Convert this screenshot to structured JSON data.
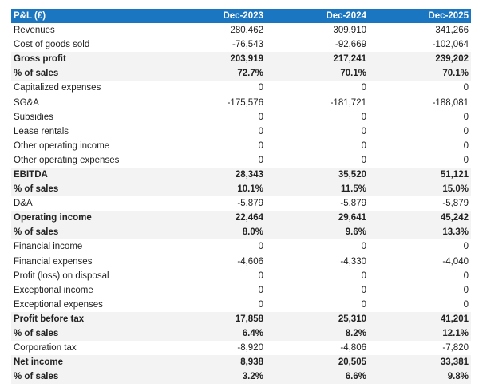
{
  "table": {
    "header": [
      "P&L (£)",
      "Dec-2023",
      "Dec-2024",
      "Dec-2025"
    ],
    "header_color": "#1a76c1",
    "rows": [
      {
        "label": "Revenues",
        "values": [
          "280,462",
          "309,910",
          "341,266"
        ],
        "bold": false
      },
      {
        "label": "Cost of goods sold",
        "values": [
          "-76,543",
          "-92,669",
          "-102,064"
        ],
        "bold": false
      },
      {
        "label": "Gross profit",
        "values": [
          "203,919",
          "217,241",
          "239,202"
        ],
        "bold": true
      },
      {
        "label": "% of sales",
        "values": [
          "72.7%",
          "70.1%",
          "70.1%"
        ],
        "bold": true
      },
      {
        "label": "Capitalized expenses",
        "values": [
          "0",
          "0",
          "0"
        ],
        "bold": false
      },
      {
        "label": "SG&A",
        "values": [
          "-175,576",
          "-181,721",
          "-188,081"
        ],
        "bold": false
      },
      {
        "label": "Subsidies",
        "values": [
          "0",
          "0",
          "0"
        ],
        "bold": false
      },
      {
        "label": "Lease rentals",
        "values": [
          "0",
          "0",
          "0"
        ],
        "bold": false
      },
      {
        "label": "Other operating income",
        "values": [
          "0",
          "0",
          "0"
        ],
        "bold": false
      },
      {
        "label": "Other operating expenses",
        "values": [
          "0",
          "0",
          "0"
        ],
        "bold": false
      },
      {
        "label": "EBITDA",
        "values": [
          "28,343",
          "35,520",
          "51,121"
        ],
        "bold": true
      },
      {
        "label": "% of sales",
        "values": [
          "10.1%",
          "11.5%",
          "15.0%"
        ],
        "bold": true
      },
      {
        "label": "D&A",
        "values": [
          "-5,879",
          "-5,879",
          "-5,879"
        ],
        "bold": false
      },
      {
        "label": "Operating income",
        "values": [
          "22,464",
          "29,641",
          "45,242"
        ],
        "bold": true
      },
      {
        "label": "% of sales",
        "values": [
          "8.0%",
          "9.6%",
          "13.3%"
        ],
        "bold": true
      },
      {
        "label": "Financial income",
        "values": [
          "0",
          "0",
          "0"
        ],
        "bold": false
      },
      {
        "label": "Financial expenses",
        "values": [
          "-4,606",
          "-4,330",
          "-4,040"
        ],
        "bold": false
      },
      {
        "label": "Profit (loss) on disposal",
        "values": [
          "0",
          "0",
          "0"
        ],
        "bold": false
      },
      {
        "label": "Exceptional income",
        "values": [
          "0",
          "0",
          "0"
        ],
        "bold": false
      },
      {
        "label": "Exceptional expenses",
        "values": [
          "0",
          "0",
          "0"
        ],
        "bold": false
      },
      {
        "label": "Profit before tax",
        "values": [
          "17,858",
          "25,310",
          "41,201"
        ],
        "bold": true
      },
      {
        "label": "% of sales",
        "values": [
          "6.4%",
          "8.2%",
          "12.1%"
        ],
        "bold": true
      },
      {
        "label": "Corporation tax",
        "values": [
          "-8,920",
          "-4,806",
          "-7,820"
        ],
        "bold": false
      },
      {
        "label": "Net income",
        "values": [
          "8,938",
          "20,505",
          "33,381"
        ],
        "bold": true
      },
      {
        "label": "% of sales",
        "values": [
          "3.2%",
          "6.6%",
          "9.8%"
        ],
        "bold": true
      }
    ]
  }
}
